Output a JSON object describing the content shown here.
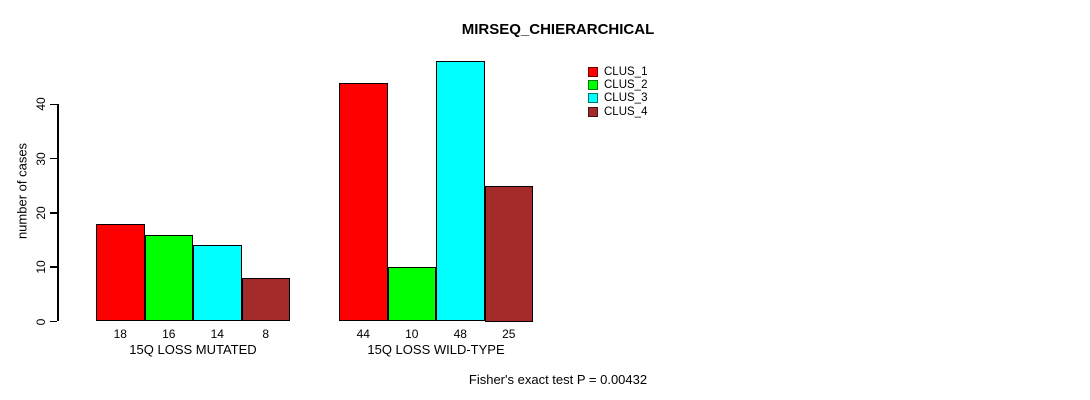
{
  "title": "MIRSEQ_CHIERARCHICAL",
  "chart_data": {
    "type": "bar",
    "title": "MIRSEQ_CHIERARCHICAL",
    "xlabel": "",
    "ylabel": "number of cases",
    "categories": [
      "15Q LOSS MUTATED",
      "15Q LOSS WILD-TYPE"
    ],
    "series": [
      {
        "name": "CLUS_1",
        "color": "#ff0000",
        "values": [
          18,
          44
        ]
      },
      {
        "name": "CLUS_2",
        "color": "#00ff00",
        "values": [
          16,
          10
        ]
      },
      {
        "name": "CLUS_3",
        "color": "#00ffff",
        "values": [
          14,
          48
        ]
      },
      {
        "name": "CLUS_4",
        "color": "#a52a2a",
        "values": [
          8,
          25
        ]
      }
    ],
    "yticks": [
      0,
      10,
      20,
      30,
      40
    ],
    "ylim": [
      0,
      48
    ],
    "grid": false,
    "bar_value_labels_shown": true,
    "legend_position": "top-right",
    "annotation": "Fisher's exact test P = 0.00432"
  }
}
